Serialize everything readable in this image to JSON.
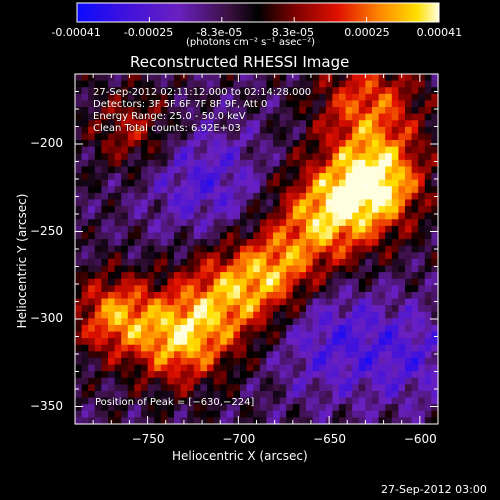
{
  "colorbar": {
    "tick_labels": [
      "-0.00041",
      "-0.00025",
      "-8.3e-05",
      "8.3e-05",
      "0.00025",
      "0.00041"
    ],
    "units_label": "(photons cm⁻² s⁻¹ asec⁻²)",
    "range": [
      -0.00041,
      0.00041
    ]
  },
  "image": {
    "title": "Reconstructed RHESSI Image",
    "xlabel": "Heliocentric X (arcsec)",
    "ylabel": "Heliocentric Y (arcsec)",
    "x_ticks": [
      "−750",
      "−700",
      "−650",
      "−600"
    ],
    "x_tick_values": [
      -750,
      -700,
      -650,
      -600
    ],
    "y_ticks": [
      "−200",
      "−250",
      "−300",
      "−350"
    ],
    "y_tick_values": [
      -200,
      -250,
      -300,
      -350
    ],
    "xlim": [
      -790,
      -590
    ],
    "ylim": [
      -360,
      -160
    ],
    "info_lines": [
      "27-Sep-2012 02:11:12.000 to 02:14:28.000",
      "Detectors: 3F 5F 6F 7F 8F 9F, Att 0",
      "Energy Range: 25.0 - 50.0 keV",
      "Clean     Total counts: 6.92E+03"
    ],
    "peak_label": "Position of Peak = [−630,−224]",
    "peak_position": [
      -630,
      -224
    ]
  },
  "footer": {
    "timestamp": "27-Sep-2012 03:00"
  },
  "colors": {
    "background": "#000000",
    "foreground": "#ffffff"
  }
}
